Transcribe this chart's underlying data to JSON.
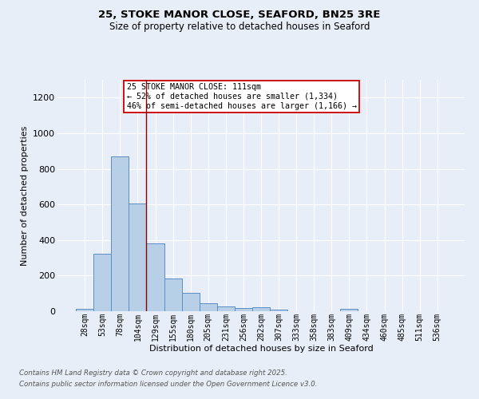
{
  "title": "25, STOKE MANOR CLOSE, SEAFORD, BN25 3RE",
  "subtitle": "Size of property relative to detached houses in Seaford",
  "xlabel": "Distribution of detached houses by size in Seaford",
  "ylabel": "Number of detached properties",
  "categories": [
    "28sqm",
    "53sqm",
    "78sqm",
    "104sqm",
    "129sqm",
    "155sqm",
    "180sqm",
    "205sqm",
    "231sqm",
    "256sqm",
    "282sqm",
    "307sqm",
    "333sqm",
    "358sqm",
    "383sqm",
    "409sqm",
    "434sqm",
    "460sqm",
    "485sqm",
    "511sqm",
    "536sqm"
  ],
  "bar_values": [
    15,
    325,
    870,
    605,
    380,
    185,
    105,
    45,
    25,
    18,
    22,
    10,
    0,
    0,
    0,
    12,
    0,
    0,
    0,
    0,
    0
  ],
  "bar_color": "#b8cfe8",
  "bar_edge_color": "#5b8ec4",
  "bar_edge_width": 0.7,
  "background_color": "#e8eef8",
  "grid_color": "#ffffff",
  "vline_x": 3.5,
  "vline_color": "#8b0000",
  "annotation_text": "25 STOKE MANOR CLOSE: 111sqm\n← 52% of detached houses are smaller (1,334)\n46% of semi-detached houses are larger (1,166) →",
  "annotation_box_color": "#ffffff",
  "annotation_box_edge": "#cc0000",
  "ylim": [
    0,
    1300
  ],
  "yticks": [
    0,
    200,
    400,
    600,
    800,
    1000,
    1200
  ],
  "footer1": "Contains HM Land Registry data © Crown copyright and database right 2025.",
  "footer2": "Contains public sector information licensed under the Open Government Licence v3.0."
}
